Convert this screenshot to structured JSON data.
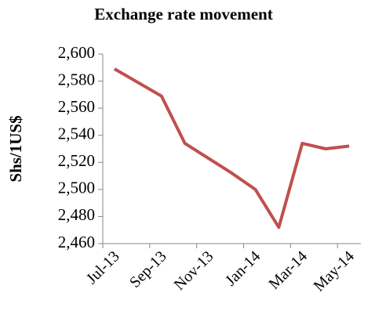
{
  "chart_data": {
    "type": "line",
    "title": "Exchange rate movement",
    "ylabel": "Shs/1US$",
    "categories": [
      "Jul-13",
      null,
      "Sep-13",
      null,
      "Nov-13",
      null,
      "Jan-14",
      null,
      "Mar-14",
      null,
      "May-14"
    ],
    "series": [
      {
        "name": "Exchange rate",
        "color": "#c0504d",
        "values": [
          2589,
          2579,
          2569,
          2534,
          2523,
          2512,
          2500,
          2472,
          2534,
          2530,
          2532
        ]
      }
    ],
    "ylim": [
      2460,
      2600
    ],
    "yticks": [
      {
        "value": 2460,
        "label": "2,460"
      },
      {
        "value": 2480,
        "label": "2,480"
      },
      {
        "value": 2500,
        "label": "2,500"
      },
      {
        "value": 2520,
        "label": "2,520"
      },
      {
        "value": 2540,
        "label": "2,540"
      },
      {
        "value": 2560,
        "label": "2,560"
      },
      {
        "value": 2580,
        "label": "2,580"
      },
      {
        "value": 2600,
        "label": "2,600"
      }
    ]
  }
}
